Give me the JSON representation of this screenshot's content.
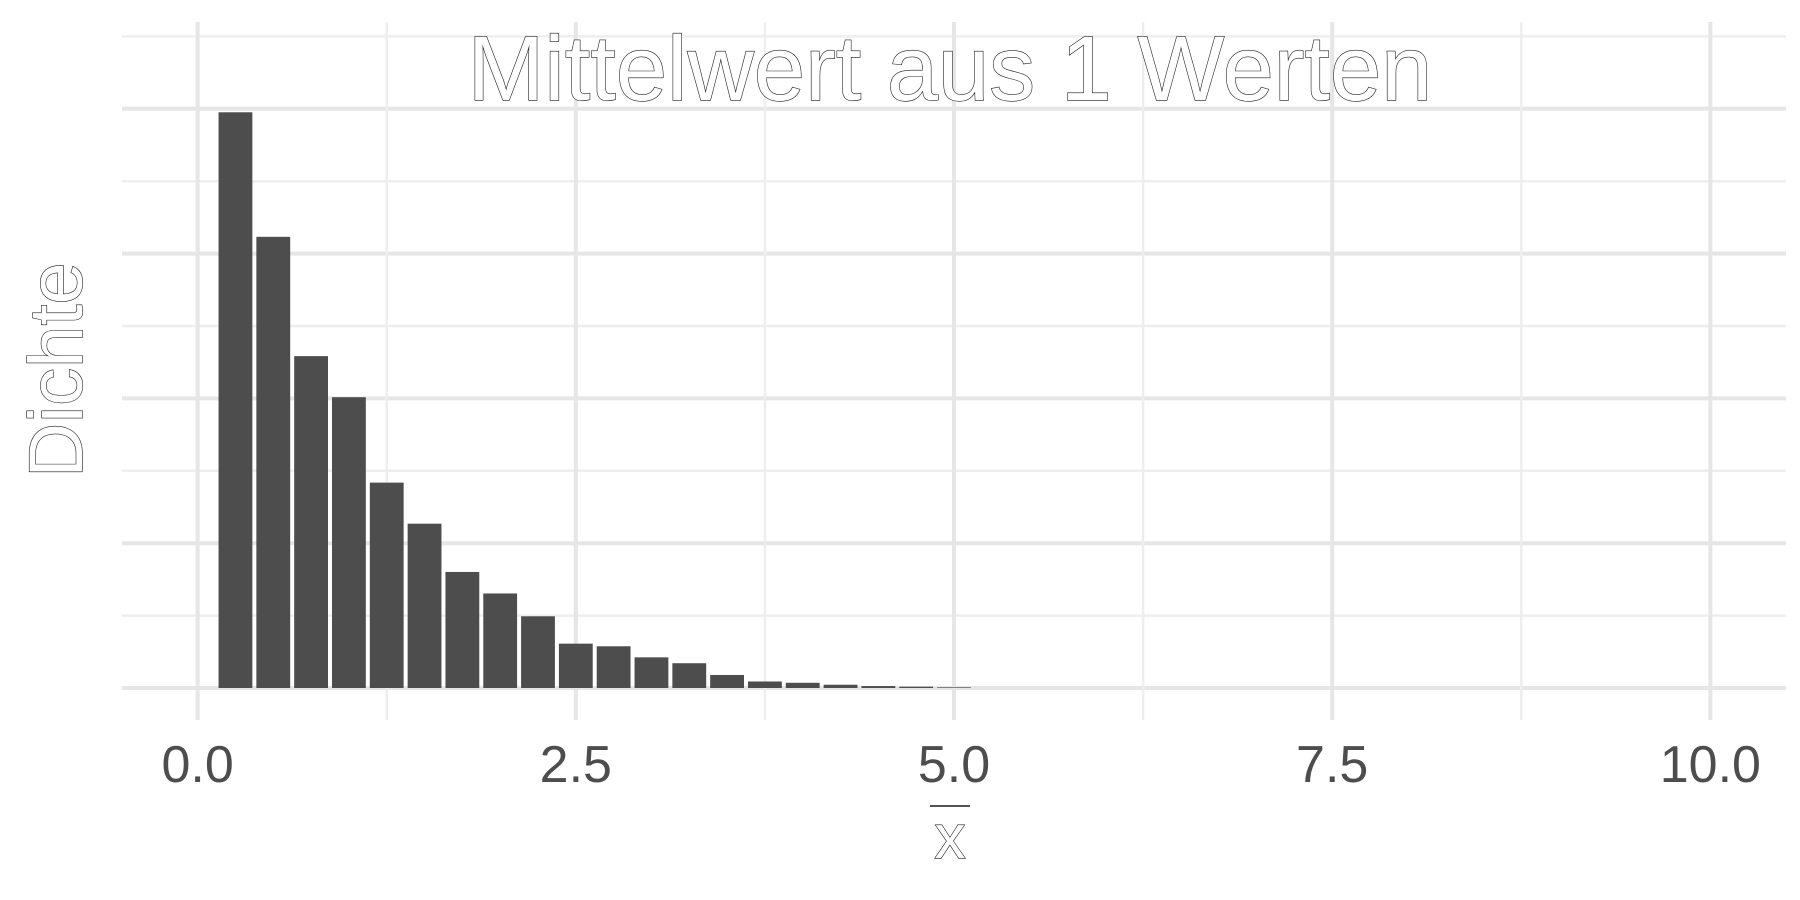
{
  "chart_data": {
    "type": "bar",
    "title": "Mittelwert aus 1 Werten",
    "xlabel": "x",
    "xlabel_overline": true,
    "ylabel": "Dichte",
    "xlim": [
      -0.5,
      10.5
    ],
    "ylim": [
      0,
      1.0
    ],
    "x_ticks": [
      "0.0",
      "2.5",
      "5.0",
      "7.5",
      "10.0"
    ],
    "x_tick_values": [
      0,
      2.5,
      5,
      7.5,
      10
    ],
    "y_ticks_shown": false,
    "grid": true,
    "bin_width": 0.25,
    "bars": [
      {
        "x": 0.25,
        "y": 0.883
      },
      {
        "x": 0.5,
        "y": 0.692
      },
      {
        "x": 0.75,
        "y": 0.509
      },
      {
        "x": 1.0,
        "y": 0.446
      },
      {
        "x": 1.25,
        "y": 0.315
      },
      {
        "x": 1.5,
        "y": 0.252
      },
      {
        "x": 1.75,
        "y": 0.178
      },
      {
        "x": 2.0,
        "y": 0.145
      },
      {
        "x": 2.25,
        "y": 0.11
      },
      {
        "x": 2.5,
        "y": 0.068
      },
      {
        "x": 2.75,
        "y": 0.064
      },
      {
        "x": 3.0,
        "y": 0.047
      },
      {
        "x": 3.25,
        "y": 0.038
      },
      {
        "x": 3.5,
        "y": 0.02
      },
      {
        "x": 3.75,
        "y": 0.01
      },
      {
        "x": 4.0,
        "y": 0.008
      },
      {
        "x": 4.25,
        "y": 0.005
      },
      {
        "x": 4.5,
        "y": 0.003
      },
      {
        "x": 4.75,
        "y": 0.002
      },
      {
        "x": 5.0,
        "y": 0.001
      }
    ],
    "colors": {
      "bar": "#4d4d4d",
      "grid_major": "#e6e6e6",
      "grid_minor": "#eeeeee",
      "tick_text": "#4d4d4d"
    }
  }
}
